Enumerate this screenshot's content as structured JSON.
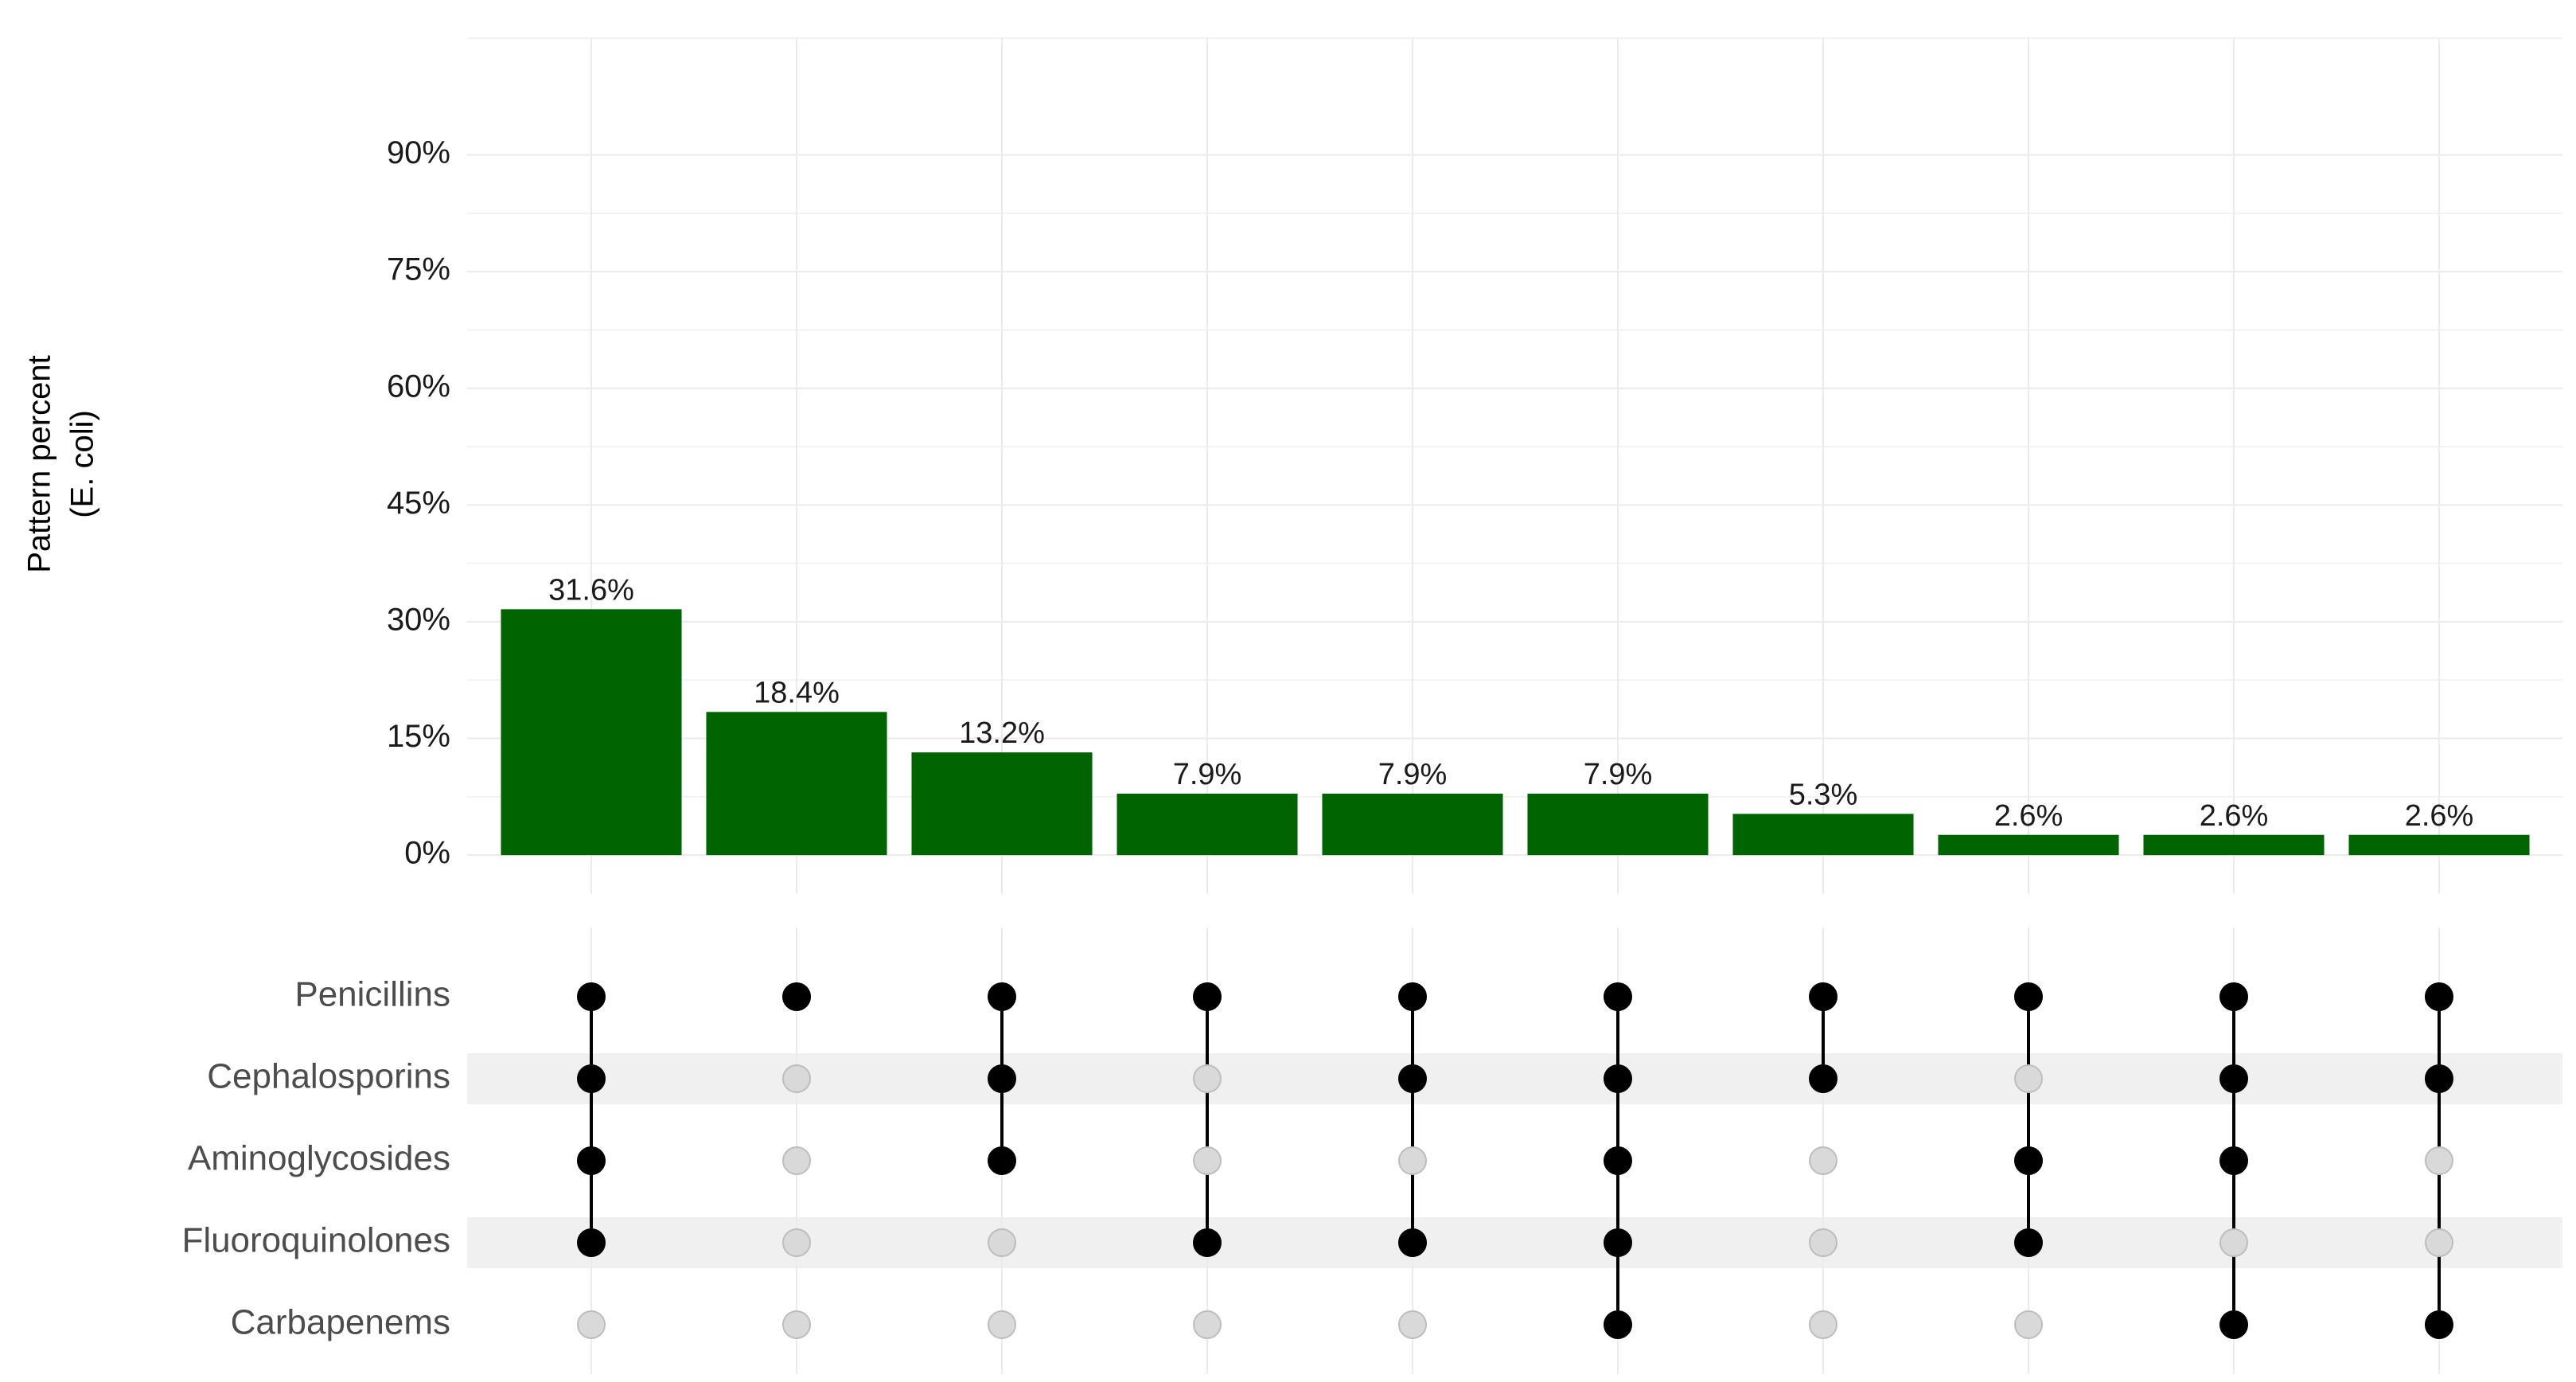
{
  "chart_data": {
    "type": "upset",
    "y_label": [
      "Pattern percent",
      "(E. coli)"
    ],
    "values": [
      31.6,
      18.4,
      13.2,
      7.9,
      7.9,
      7.9,
      5.3,
      2.6,
      2.6,
      2.6
    ],
    "value_labels": [
      "31.6%",
      "18.4%",
      "13.2%",
      "7.9%",
      "7.9%",
      "7.9%",
      "5.3%",
      "2.6%",
      "2.6%",
      "2.6%"
    ],
    "color": "#006400",
    "ylim": [
      -5,
      105
    ],
    "yticks": [
      {
        "value": 0,
        "label": "0%"
      },
      {
        "value": 15,
        "label": "15%"
      },
      {
        "value": 30,
        "label": "30%"
      },
      {
        "value": 45,
        "label": "45%"
      },
      {
        "value": 60,
        "label": "60%"
      },
      {
        "value": 75,
        "label": "75%"
      },
      {
        "value": 90,
        "label": "90%"
      }
    ],
    "grid": true,
    "sets": [
      "Penicillins",
      "Cephalosporins",
      "Aminoglycosides",
      "Fluoroquinolones",
      "Carbapenems"
    ],
    "membership": [
      [
        1,
        1,
        1,
        1,
        0
      ],
      [
        1,
        0,
        0,
        0,
        0
      ],
      [
        1,
        1,
        1,
        0,
        0
      ],
      [
        1,
        0,
        0,
        1,
        0
      ],
      [
        1,
        1,
        0,
        1,
        0
      ],
      [
        1,
        1,
        1,
        1,
        1
      ],
      [
        1,
        1,
        0,
        0,
        0
      ],
      [
        1,
        0,
        1,
        1,
        0
      ],
      [
        1,
        1,
        1,
        0,
        1
      ],
      [
        1,
        1,
        0,
        0,
        1
      ]
    ]
  }
}
